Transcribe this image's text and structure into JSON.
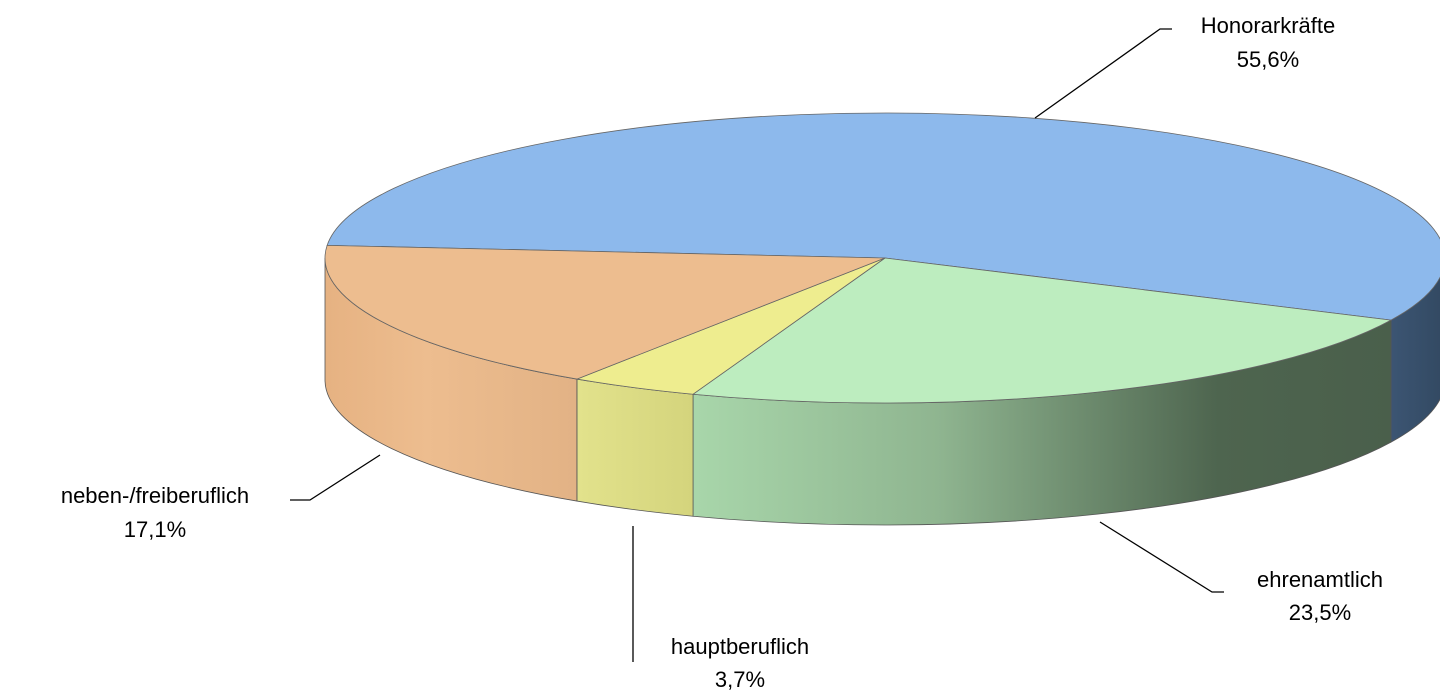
{
  "chart_data": {
    "type": "pie3d",
    "categories": [
      "Honorarkräfte",
      "ehrenamtlich",
      "hauptberuflich",
      "neben-/freiberuflich"
    ],
    "values": [
      55.6,
      23.5,
      3.7,
      17.1
    ],
    "value_labels": [
      "55,6%",
      "23,5%",
      "3,7%",
      "17,1%"
    ],
    "colors": [
      "#8db9ec",
      "#bdedbf",
      "#eeed8f",
      "#edbd8f"
    ]
  }
}
